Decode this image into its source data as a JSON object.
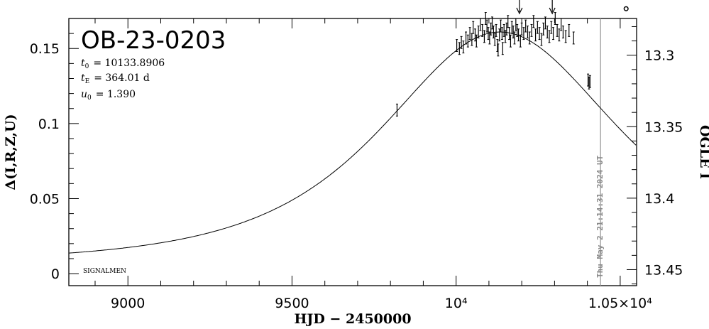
{
  "chart_data": {
    "type": "scatter",
    "title": "OB-23-0203",
    "xlabel": "HJD − 2450000",
    "ylabel_left": "Δ(I,R,Z,U)",
    "ylabel_right": "OGLE I",
    "xlim": [
      8820,
      10550
    ],
    "ylim_left": [
      -0.008,
      0.17
    ],
    "ylim_right": [
      13.4612,
      13.2743
    ],
    "x_ticks": [
      {
        "value": 9000,
        "label": "9000"
      },
      {
        "value": 9500,
        "label": "9500"
      },
      {
        "value": 10000,
        "label": "10⁴"
      },
      {
        "value": 10500,
        "label": "1.05×10⁴"
      }
    ],
    "y_left_ticks": [
      {
        "value": 0,
        "label": "0"
      },
      {
        "value": 0.05,
        "label": "0.05"
      },
      {
        "value": 0.1,
        "label": "0.1"
      },
      {
        "value": 0.15,
        "label": "0.15"
      }
    ],
    "y_right_ticks": [
      {
        "value": 13.3,
        "label": "13.3"
      },
      {
        "value": 13.35,
        "label": "13.35"
      },
      {
        "value": 13.4,
        "label": "13.4"
      },
      {
        "value": 13.45,
        "label": "13.45"
      }
    ],
    "params": {
      "t0_sym": "t",
      "t0_sub": "0",
      "t0_val": "= 10133.8906",
      "tE_sym": "t",
      "tE_sub": "E",
      "tE_val": "= 364.01 d",
      "u0_sym": "u",
      "u0_sub": "0",
      "u0_val": "= 1.390"
    },
    "model": {
      "t0": 10133.8906,
      "tE": 364.01,
      "u0": 1.39,
      "ref": 0.007,
      "dpk": 0.154
    },
    "arrows_x": [
      10193,
      10293
    ],
    "now_line_x": 10440,
    "timestamp_text": "Thu May  2 21:14:31 2024 UT",
    "credit": "SIGNALMEN",
    "points": [
      [
        9820,
        0.109,
        0.004
      ],
      [
        10002,
        0.152,
        0.004
      ],
      [
        10010,
        0.15,
        0.004
      ],
      [
        10016,
        0.154,
        0.004
      ],
      [
        10022,
        0.151,
        0.004
      ],
      [
        10030,
        0.157,
        0.004
      ],
      [
        10036,
        0.155,
        0.004
      ],
      [
        10042,
        0.16,
        0.004
      ],
      [
        10048,
        0.156,
        0.004
      ],
      [
        10052,
        0.164,
        0.004
      ],
      [
        10058,
        0.159,
        0.004
      ],
      [
        10062,
        0.155,
        0.004
      ],
      [
        10068,
        0.161,
        0.004
      ],
      [
        10074,
        0.166,
        0.004
      ],
      [
        10080,
        0.162,
        0.004
      ],
      [
        10086,
        0.158,
        0.004
      ],
      [
        10090,
        0.17,
        0.004
      ],
      [
        10094,
        0.165,
        0.004
      ],
      [
        10098,
        0.16,
        0.004
      ],
      [
        10102,
        0.157,
        0.004
      ],
      [
        10106,
        0.163,
        0.004
      ],
      [
        10110,
        0.167,
        0.004
      ],
      [
        10114,
        0.161,
        0.004
      ],
      [
        10118,
        0.156,
        0.004
      ],
      [
        10122,
        0.162,
        0.004
      ],
      [
        10126,
        0.152,
        0.004
      ],
      [
        10128,
        0.149,
        0.004
      ],
      [
        10132,
        0.159,
        0.004
      ],
      [
        10136,
        0.165,
        0.004
      ],
      [
        10140,
        0.16,
        0.004
      ],
      [
        10142,
        0.15,
        0.004
      ],
      [
        10146,
        0.162,
        0.004
      ],
      [
        10150,
        0.158,
        0.004
      ],
      [
        10154,
        0.163,
        0.004
      ],
      [
        10158,
        0.168,
        0.004
      ],
      [
        10162,
        0.16,
        0.004
      ],
      [
        10166,
        0.155,
        0.004
      ],
      [
        10170,
        0.164,
        0.004
      ],
      [
        10174,
        0.161,
        0.004
      ],
      [
        10178,
        0.157,
        0.004
      ],
      [
        10182,
        0.166,
        0.004
      ],
      [
        10186,
        0.162,
        0.004
      ],
      [
        10190,
        0.159,
        0.004
      ],
      [
        10196,
        0.155,
        0.004
      ],
      [
        10200,
        0.163,
        0.004
      ],
      [
        10206,
        0.16,
        0.004
      ],
      [
        10212,
        0.165,
        0.004
      ],
      [
        10218,
        0.161,
        0.004
      ],
      [
        10224,
        0.157,
        0.004
      ],
      [
        10230,
        0.162,
        0.004
      ],
      [
        10236,
        0.168,
        0.004
      ],
      [
        10242,
        0.159,
        0.004
      ],
      [
        10248,
        0.164,
        0.004
      ],
      [
        10254,
        0.16,
        0.004
      ],
      [
        10260,
        0.156,
        0.004
      ],
      [
        10266,
        0.163,
        0.004
      ],
      [
        10272,
        0.167,
        0.004
      ],
      [
        10278,
        0.161,
        0.004
      ],
      [
        10284,
        0.158,
        0.004
      ],
      [
        10290,
        0.164,
        0.004
      ],
      [
        10296,
        0.16,
        0.004
      ],
      [
        10302,
        0.17,
        0.004
      ],
      [
        10308,
        0.162,
        0.004
      ],
      [
        10314,
        0.159,
        0.004
      ],
      [
        10320,
        0.166,
        0.004
      ],
      [
        10326,
        0.161,
        0.004
      ],
      [
        10334,
        0.158,
        0.004
      ],
      [
        10344,
        0.162,
        0.004
      ],
      [
        10358,
        0.157,
        0.004
      ],
      [
        10402,
        0.129,
        0.004
      ],
      [
        10405,
        0.127,
        0.004
      ],
      [
        10408,
        0.128,
        0.004
      ]
    ],
    "open_point": [
      10518,
      0.1765
    ]
  }
}
